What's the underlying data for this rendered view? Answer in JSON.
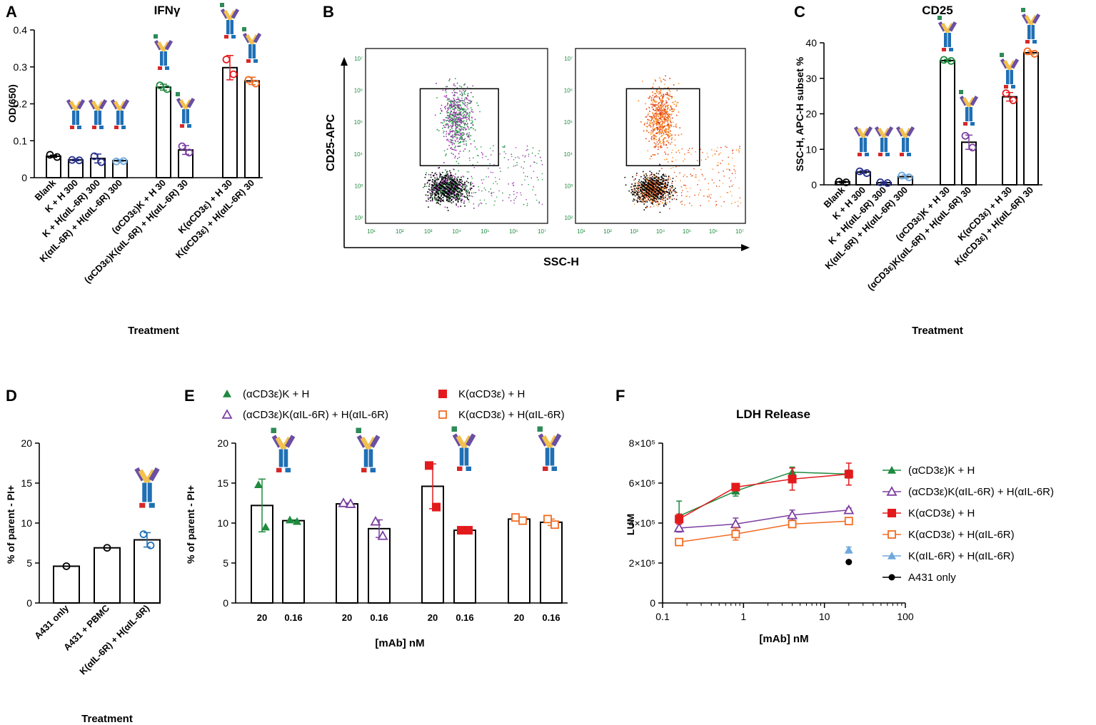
{
  "colors": {
    "black": "#000000",
    "green": "#1e8a3e",
    "purple": "#7b3fa0",
    "red": "#e31a1c",
    "orange": "#f26b21",
    "lightblue": "#6fa8dc",
    "navy": "#27308a",
    "ab_blue": "#1f6fb5",
    "ab_yellow": "#f2c14e",
    "ab_purple": "#6a4fa3",
    "ab_red": "#d62728",
    "ab_teal": "#2e8b57"
  },
  "chart_data": [
    {
      "id": "A",
      "type": "bar",
      "title": "IFNγ",
      "ylabel": "OD(650)",
      "xlabel": "Treatment",
      "ylim": [
        0,
        0.4
      ],
      "yticks": [
        0,
        0.1,
        0.2,
        0.3,
        0.4
      ],
      "categories": [
        "Blank",
        "K + H 300",
        "K + H(αIL-6R) 300",
        "K(αIL-6R) + H(αIL-6R) 300",
        "(αCD3ε)K + H 30",
        "(αCD3ε)K(αIL-6R) + H(αIL-6R) 30",
        "K(αCD3ε) + H 30",
        "K(αCD3ε) + H(αIL-6R) 30"
      ],
      "values": [
        0.058,
        0.048,
        0.052,
        0.046,
        0.245,
        0.075,
        0.298,
        0.262
      ],
      "errors": [
        0.003,
        0.002,
        0.012,
        0.003,
        0.008,
        0.012,
        0.033,
        0.01
      ],
      "point_colors": [
        "black",
        "navy",
        "navy",
        "lightblue",
        "green",
        "purple",
        "red",
        "orange"
      ],
      "points": [
        [
          0.062,
          0.056
        ],
        [
          0.048,
          0.047
        ],
        [
          0.058,
          0.042
        ],
        [
          0.044,
          0.045
        ],
        [
          0.25,
          0.24
        ],
        [
          0.085,
          0.068
        ],
        [
          0.32,
          0.28
        ],
        [
          0.265,
          0.255
        ]
      ]
    },
    {
      "id": "B",
      "type": "scatter",
      "xlabel": "SSC-H",
      "ylabel": "CD25-APC",
      "x_ticks": [
        "10¹",
        "10²",
        "10³",
        "10⁴",
        "10⁵",
        "10⁶",
        "10⁷"
      ],
      "y_ticks": [
        "10²",
        "10³",
        "10⁴",
        "10⁵",
        "10⁶",
        "10⁷"
      ]
    },
    {
      "id": "C",
      "type": "bar",
      "title": "CD25",
      "ylabel": "SSC-H, APC-H subset %",
      "xlabel": "Treatment",
      "ylim": [
        0,
        40
      ],
      "yticks": [
        0,
        10,
        20,
        30,
        40
      ],
      "categories": [
        "Blank",
        "K + H 300",
        "K + H(αIL-6R) 300",
        "K(αIL-6R) + H(αIL-6R) 300",
        "(αCD3ε)K + H 30",
        "(αCD3ε)K(αIL-6R) + H(αIL-6R) 30",
        "K(αCD3ε) + H 30",
        "K(αCD3ε) + H(αIL-6R) 30"
      ],
      "values": [
        0.8,
        3.6,
        0.6,
        2.3,
        35.0,
        12.0,
        24.8,
        37.2
      ],
      "errors": [
        0.2,
        0.4,
        0.2,
        0.5,
        0.3,
        2.0,
        1.2,
        0.5
      ],
      "point_colors": [
        "black",
        "navy",
        "navy",
        "lightblue",
        "green",
        "purple",
        "red",
        "orange"
      ],
      "points": [
        [
          0.9,
          0.7
        ],
        [
          3.8,
          3.3
        ],
        [
          0.7,
          0.5
        ],
        [
          2.6,
          2.1
        ],
        [
          35.2,
          34.9
        ],
        [
          13.8,
          10.5
        ],
        [
          25.8,
          23.8
        ],
        [
          37.6,
          36.9
        ]
      ]
    },
    {
      "id": "D",
      "type": "bar",
      "ylabel": "% of parent - PI+",
      "xlabel": "Treatment",
      "ylim": [
        0,
        20
      ],
      "yticks": [
        0,
        5,
        10,
        15,
        20
      ],
      "categories": [
        "A431 only",
        "A431 + PBMC",
        "K(αIL-6R) + H(αIL-6R)"
      ],
      "values": [
        4.6,
        6.9,
        7.9
      ],
      "errors": [
        0,
        0,
        0.9
      ],
      "point_colors": [
        "black",
        "black",
        "ab_blue"
      ],
      "points": [
        [
          4.6
        ],
        [
          6.9
        ],
        [
          8.6,
          7.2
        ]
      ]
    },
    {
      "id": "E",
      "type": "bar",
      "ylabel": "% of parent - PI+",
      "xlabel": "[mAb] nM",
      "ylim": [
        0,
        20
      ],
      "yticks": [
        0,
        5,
        10,
        15,
        20
      ],
      "categories": [
        "20",
        "0.16",
        "20",
        "0.16",
        "20",
        "0.16",
        "20",
        "0.16"
      ],
      "values": [
        12.2,
        10.3,
        12.4,
        9.3,
        14.6,
        9.1,
        10.5,
        10.1
      ],
      "errors": [
        3.3,
        0.1,
        0.1,
        1.1,
        2.8,
        0.1,
        0.2,
        0.4
      ],
      "series_names": [
        "(αCD3ε)K + H",
        "(αCD3ε)K(αIL-6R) + H(αIL-6R)",
        "K(αCD3ε) + H",
        "K(αCD3ε) + H(αIL-6R)"
      ],
      "series_colors": [
        "green",
        "purple",
        "red",
        "orange"
      ],
      "series_markers": [
        "tri",
        "otri",
        "sq",
        "osq"
      ],
      "points": [
        [
          14.8,
          9.5
        ],
        [
          10.4,
          10.2
        ],
        [
          12.5,
          12.4
        ],
        [
          10.2,
          8.4
        ],
        [
          17.2,
          12.0
        ],
        [
          9.1,
          9.1
        ],
        [
          10.7,
          10.3
        ],
        [
          10.5,
          9.8
        ]
      ]
    },
    {
      "id": "F",
      "type": "line",
      "title": "LDH Release",
      "ylabel": "LUM",
      "xlabel": "[mAb] nM",
      "xscale": "log",
      "xlim": [
        0.1,
        100
      ],
      "ylim": [
        0,
        800000
      ],
      "xticks": [
        "0.1",
        "1",
        "10",
        "100"
      ],
      "yticks": [
        "0",
        "2×10⁵",
        "4×10⁵",
        "6×10⁵",
        "8×10⁵"
      ],
      "x": [
        0.16,
        0.8,
        4,
        20
      ],
      "series": [
        {
          "name": "(αCD3ε)K + H",
          "color": "green",
          "marker": "tri",
          "values": [
            435000,
            560000,
            655000,
            645000
          ],
          "errors": [
            75000,
            25000,
            25000,
            20000
          ]
        },
        {
          "name": "(αCD3ε)K(αIL-6R) + H(αIL-6R)",
          "color": "purple",
          "marker": "otri",
          "values": [
            375000,
            395000,
            440000,
            465000
          ],
          "errors": [
            20000,
            30000,
            25000,
            10000
          ]
        },
        {
          "name": "K(αCD3ε) + H",
          "color": "red",
          "marker": "sq",
          "values": [
            420000,
            580000,
            620000,
            645000
          ],
          "errors": [
            25000,
            15000,
            55000,
            55000
          ]
        },
        {
          "name": "K(αCD3ε) + H(αIL-6R)",
          "color": "orange",
          "marker": "osq",
          "values": [
            305000,
            345000,
            395000,
            410000
          ],
          "errors": [
            10000,
            30000,
            10000,
            10000
          ]
        },
        {
          "name": "K(αIL-6R) + H(αIL-6R)",
          "color": "lightblue",
          "marker": "tri",
          "x": [
            20
          ],
          "values": [
            265000
          ],
          "errors": [
            15000
          ]
        },
        {
          "name": "A431 only",
          "color": "black",
          "marker": "dot",
          "x": [
            20
          ],
          "values": [
            205000
          ],
          "errors": [
            0
          ]
        }
      ]
    }
  ],
  "panels": {
    "A": {
      "letter": "A"
    },
    "B": {
      "letter": "B"
    },
    "C": {
      "letter": "C"
    },
    "D": {
      "letter": "D"
    },
    "E": {
      "letter": "E"
    },
    "F": {
      "letter": "F"
    }
  }
}
